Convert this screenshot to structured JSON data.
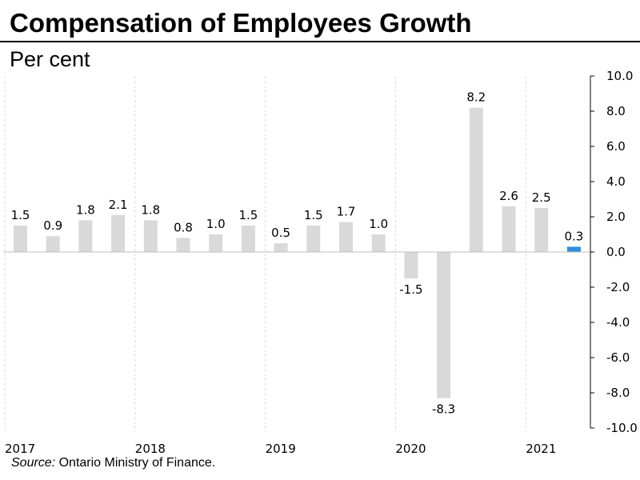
{
  "header": {
    "title": "Compensation of Employees Growth",
    "subtitle": "Per cent"
  },
  "footer": {
    "source_label": "Source:",
    "source_text": "Ontario Ministry of Finance."
  },
  "colors": {
    "bar": "#d9d9d9",
    "highlight": "#2e8fdc",
    "gridline": "#d9d9d9",
    "axis": "#000000"
  },
  "chart_data": {
    "type": "bar",
    "title": "Compensation of Employees Growth",
    "ylabel": "Per cent",
    "xlabel": "",
    "ylim": [
      -10,
      10
    ],
    "yticks": [
      10,
      8,
      6,
      4,
      2,
      0,
      -2,
      -4,
      -6,
      -8,
      -10
    ],
    "ytick_labels": [
      "10.0",
      "8.0",
      "6.0",
      "4.0",
      "2.0",
      "0.0",
      "-2.0",
      "-4.0",
      "-6.0",
      "-8.0",
      "-10.0"
    ],
    "y_axis_position": "right",
    "year_labels": [
      "2017",
      "2018",
      "2019",
      "2020",
      "2021"
    ],
    "categories": [
      "2017Q1",
      "2017Q2",
      "2017Q3",
      "2017Q4",
      "2018Q1",
      "2018Q2",
      "2018Q3",
      "2018Q4",
      "2019Q1",
      "2019Q2",
      "2019Q3",
      "2019Q4",
      "2020Q1",
      "2020Q2",
      "2020Q3",
      "2020Q4",
      "2021Q1",
      "2021Q2"
    ],
    "values": [
      1.5,
      0.9,
      1.8,
      2.1,
      1.8,
      0.8,
      1.0,
      1.5,
      0.5,
      1.5,
      1.7,
      1.0,
      -1.5,
      -8.3,
      8.2,
      2.6,
      2.5,
      0.3
    ],
    "value_labels": [
      "1.5",
      "0.9",
      "1.8",
      "2.1",
      "1.8",
      "0.8",
      "1.0",
      "1.5",
      "0.5",
      "1.5",
      "1.7",
      "1.0",
      "-1.5",
      "-8.3",
      "8.2",
      "2.6",
      "2.5",
      "0.3"
    ],
    "highlight_index": 17,
    "grid": "vertical dashed at year boundaries"
  }
}
